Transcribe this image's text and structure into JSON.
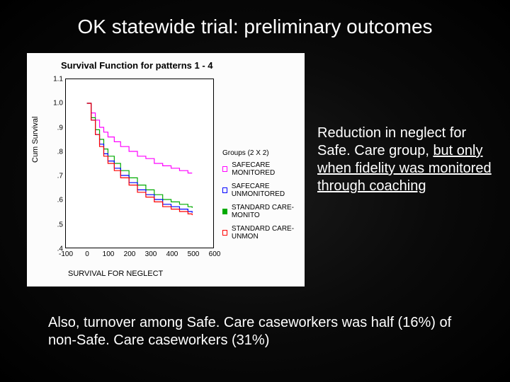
{
  "title": "OK statewide trial: preliminary outcomes",
  "chart": {
    "type": "line",
    "title": "Survival Function for patterns 1 - 4",
    "sublabel": "SURVIVAL FOR NEGLECT",
    "ylabel": "Cum Survival",
    "background_color": "#fcfcfc",
    "plot_bg": "#ffffff",
    "border_color": "#000000",
    "xlim": [
      -100,
      600
    ],
    "ylim": [
      0.4,
      1.1
    ],
    "yticks": [
      0.4,
      0.5,
      0.6,
      0.7,
      0.8,
      0.9,
      1.0,
      1.1
    ],
    "ytick_labels": [
      ".4",
      ".5",
      ".6",
      ".7",
      ".8",
      ".9",
      "1.0",
      "1.1"
    ],
    "xticks": [
      -100,
      0,
      100,
      200,
      300,
      400,
      500,
      600
    ],
    "xtick_labels": [
      "-100",
      "0",
      "100",
      "200",
      "300",
      "400",
      "500",
      "600"
    ],
    "tick_fontsize": 10,
    "title_fontsize": 13,
    "line_width": 1.2,
    "legend": {
      "title": "Groups (2 X 2)",
      "items": [
        {
          "label": "SAFECARE MONITORED",
          "color": "#ff00ff",
          "mark_fill": "#ffffff"
        },
        {
          "label": "SAFECARE UNMONITORED",
          "color": "#0000ff",
          "mark_fill": "#ffffff"
        },
        {
          "label": "STANDARD CARE-MONITO",
          "color": "#00aa00",
          "mark_fill": "#00aa00"
        },
        {
          "label": "STANDARD CARE-UNMON",
          "color": "#ff0000",
          "mark_fill": "#ffffff"
        }
      ]
    },
    "series": [
      {
        "name": "SAFECARE MONITORED",
        "color": "#ff00ff",
        "points": [
          [
            0,
            1.0
          ],
          [
            20,
            0.96
          ],
          [
            40,
            0.93
          ],
          [
            60,
            0.9
          ],
          [
            80,
            0.88
          ],
          [
            100,
            0.86
          ],
          [
            130,
            0.84
          ],
          [
            160,
            0.82
          ],
          [
            200,
            0.8
          ],
          [
            240,
            0.78
          ],
          [
            280,
            0.77
          ],
          [
            320,
            0.75
          ],
          [
            360,
            0.74
          ],
          [
            400,
            0.73
          ],
          [
            440,
            0.72
          ],
          [
            480,
            0.71
          ],
          [
            500,
            0.71
          ]
        ]
      },
      {
        "name": "STANDARD CARE-MONITO",
        "color": "#00aa00",
        "points": [
          [
            0,
            1.0
          ],
          [
            20,
            0.94
          ],
          [
            40,
            0.89
          ],
          [
            60,
            0.85
          ],
          [
            80,
            0.81
          ],
          [
            100,
            0.78
          ],
          [
            130,
            0.75
          ],
          [
            160,
            0.72
          ],
          [
            200,
            0.69
          ],
          [
            240,
            0.66
          ],
          [
            280,
            0.64
          ],
          [
            320,
            0.62
          ],
          [
            360,
            0.6
          ],
          [
            400,
            0.59
          ],
          [
            440,
            0.58
          ],
          [
            480,
            0.57
          ],
          [
            500,
            0.565
          ]
        ]
      },
      {
        "name": "SAFECARE UNMONITORED",
        "color": "#0000ff",
        "points": [
          [
            0,
            1.0
          ],
          [
            20,
            0.93
          ],
          [
            40,
            0.87
          ],
          [
            60,
            0.83
          ],
          [
            80,
            0.79
          ],
          [
            100,
            0.76
          ],
          [
            130,
            0.73
          ],
          [
            160,
            0.7
          ],
          [
            200,
            0.67
          ],
          [
            240,
            0.64
          ],
          [
            280,
            0.62
          ],
          [
            320,
            0.6
          ],
          [
            360,
            0.58
          ],
          [
            400,
            0.57
          ],
          [
            440,
            0.56
          ],
          [
            480,
            0.55
          ],
          [
            500,
            0.545
          ]
        ]
      },
      {
        "name": "STANDARD CARE-UNMON",
        "color": "#ff0000",
        "points": [
          [
            0,
            1.0
          ],
          [
            20,
            0.93
          ],
          [
            40,
            0.87
          ],
          [
            60,
            0.82
          ],
          [
            80,
            0.78
          ],
          [
            100,
            0.75
          ],
          [
            130,
            0.72
          ],
          [
            160,
            0.69
          ],
          [
            200,
            0.66
          ],
          [
            240,
            0.63
          ],
          [
            280,
            0.61
          ],
          [
            320,
            0.59
          ],
          [
            360,
            0.57
          ],
          [
            400,
            0.56
          ],
          [
            440,
            0.55
          ],
          [
            480,
            0.54
          ],
          [
            500,
            0.535
          ]
        ]
      }
    ]
  },
  "side_text": {
    "plain": "Reduction in neglect for Safe. Care group, ",
    "u1": "but only when fidelity was monitored through coaching"
  },
  "bottom_text": "Also, turnover among Safe. Care caseworkers was half (16%) of non-Safe. Care caseworkers (31%)"
}
